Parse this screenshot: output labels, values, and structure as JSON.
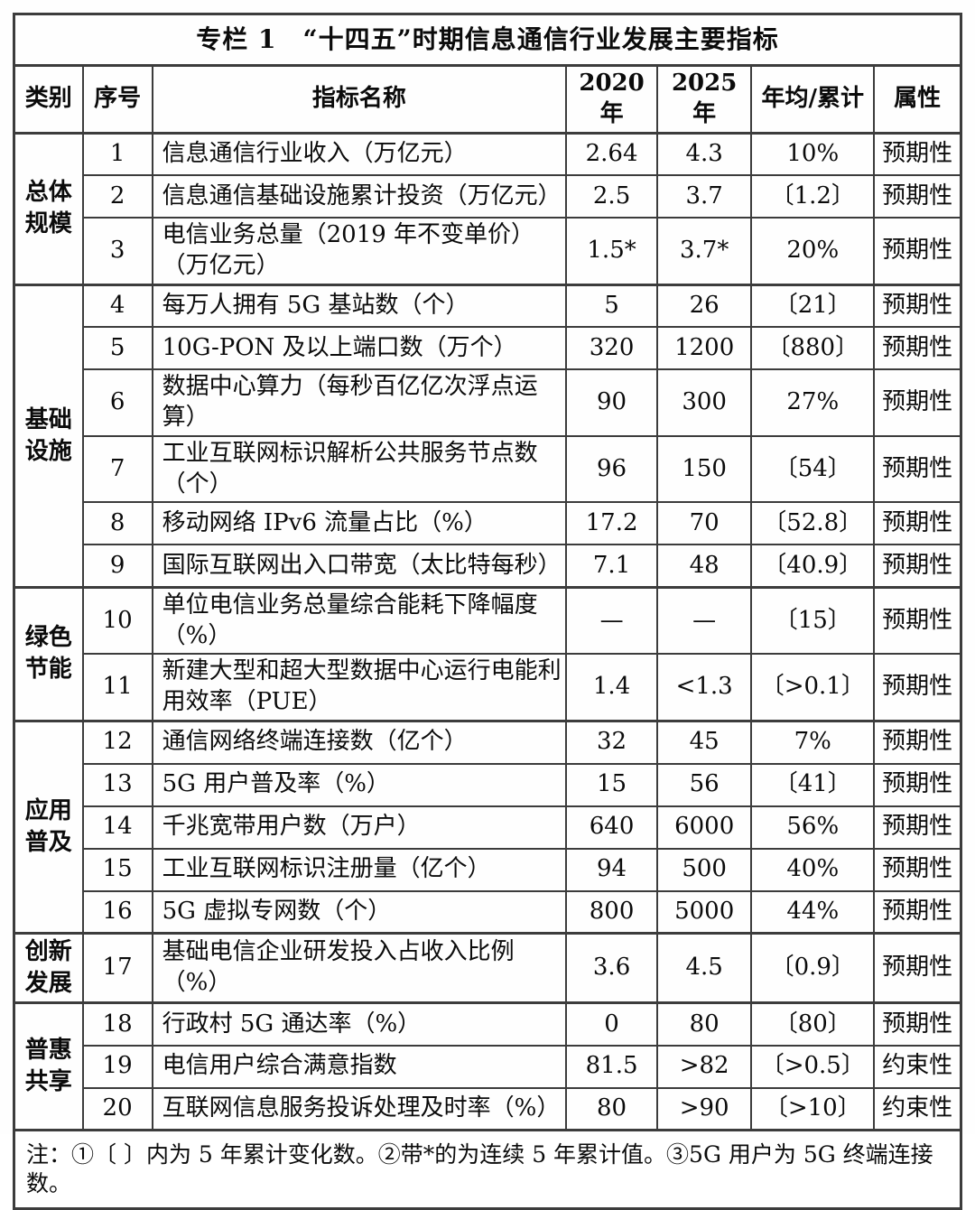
{
  "title": "专栏 1　“十四五”时期信息通信行业发展主要指标",
  "columns": [
    "类别",
    "序号",
    "指标名称",
    "2020年",
    "2025 年",
    "年均/累计",
    "属性"
  ],
  "groups": [
    {
      "category": "总体规模",
      "rows": [
        {
          "no": "1",
          "name": "信息通信行业收入（万亿元）",
          "y2020": "2.64",
          "y2025": "4.3",
          "avg": "10%",
          "attr": "预期性",
          "tall": false
        },
        {
          "no": "2",
          "name": "信息通信基础设施累计投资（万亿元）",
          "y2020": "2.5",
          "y2025": "3.7",
          "avg": "〔1.2〕",
          "attr": "预期性",
          "tall": false
        },
        {
          "no": "3",
          "name": "电信业务总量（2019 年不变单价）（万亿元）",
          "y2020": "1.5*",
          "y2025": "3.7*",
          "avg": "20%",
          "attr": "预期性",
          "tall": true
        }
      ]
    },
    {
      "category": "基础设施",
      "rows": [
        {
          "no": "4",
          "name": "每万人拥有 5G 基站数（个）",
          "y2020": "5",
          "y2025": "26",
          "avg": "〔21〕",
          "attr": "预期性",
          "tall": false
        },
        {
          "no": "5",
          "name": "10G-PON 及以上端口数（万个）",
          "y2020": "320",
          "y2025": "1200",
          "avg": "〔880〕",
          "attr": "预期性",
          "tall": false
        },
        {
          "no": "6",
          "name": "数据中心算力（每秒百亿亿次浮点运算）",
          "y2020": "90",
          "y2025": "300",
          "avg": "27%",
          "attr": "预期性",
          "tall": false
        },
        {
          "no": "7",
          "name": "工业互联网标识解析公共服务节点数（个）",
          "y2020": "96",
          "y2025": "150",
          "avg": "〔54〕",
          "attr": "预期性",
          "tall": true
        },
        {
          "no": "8",
          "name": "移动网络 IPv6 流量占比（%）",
          "y2020": "17.2",
          "y2025": "70",
          "avg": "〔52.8〕",
          "attr": "预期性",
          "tall": false
        },
        {
          "no": "9",
          "name": "国际互联网出入口带宽（太比特每秒）",
          "y2020": "7.1",
          "y2025": "48",
          "avg": "〔40.9〕",
          "attr": "预期性",
          "tall": false
        }
      ]
    },
    {
      "category": "绿色节能",
      "rows": [
        {
          "no": "10",
          "name": "单位电信业务总量综合能耗下降幅度（%）",
          "y2020": "—",
          "y2025": "—",
          "avg": "〔15〕",
          "attr": "预期性",
          "tall": true
        },
        {
          "no": "11",
          "name": "新建大型和超大型数据中心运行电能利用效率（PUE）",
          "y2020": "1.4",
          "y2025": "<1.3",
          "avg": "〔>0.1〕",
          "attr": "预期性",
          "tall": true
        }
      ]
    },
    {
      "category": "应用普及",
      "rows": [
        {
          "no": "12",
          "name": "通信网络终端连接数（亿个）",
          "y2020": "32",
          "y2025": "45",
          "avg": "7%",
          "attr": "预期性",
          "tall": false
        },
        {
          "no": "13",
          "name": "5G 用户普及率（%）",
          "y2020": "15",
          "y2025": "56",
          "avg": "〔41〕",
          "attr": "预期性",
          "tall": false
        },
        {
          "no": "14",
          "name": "千兆宽带用户数（万户）",
          "y2020": "640",
          "y2025": "6000",
          "avg": "56%",
          "attr": "预期性",
          "tall": false
        },
        {
          "no": "15",
          "name": "工业互联网标识注册量（亿个）",
          "y2020": "94",
          "y2025": "500",
          "avg": "40%",
          "attr": "预期性",
          "tall": false
        },
        {
          "no": "16",
          "name": "5G 虚拟专网数（个）",
          "y2020": "800",
          "y2025": "5000",
          "avg": "44%",
          "attr": "预期性",
          "tall": false
        }
      ]
    },
    {
      "category": "创新发展",
      "rows": [
        {
          "no": "17",
          "name": "基础电信企业研发投入占收入比例（%）",
          "y2020": "3.6",
          "y2025": "4.5",
          "avg": "〔0.9〕",
          "attr": "预期性",
          "tall": true
        }
      ]
    },
    {
      "category": "普惠共享",
      "rows": [
        {
          "no": "18",
          "name": "行政村 5G 通达率（%）",
          "y2020": "0",
          "y2025": "80",
          "avg": "〔80〕",
          "attr": "预期性",
          "tall": false
        },
        {
          "no": "19",
          "name": "电信用户综合满意指数",
          "y2020": "81.5",
          "y2025": ">82",
          "avg": "〔>0.5〕",
          "attr": "约束性",
          "tall": false
        },
        {
          "no": "20",
          "name": "互联网信息服务投诉处理及时率（%）",
          "y2020": "80",
          "y2025": ">90",
          "avg": "〔>10〕",
          "attr": "约束性",
          "tall": false
        }
      ]
    }
  ],
  "note": "注：①〔 〕内为 5 年累计变化数。②带*的为连续 5 年累计值。③5G 用户为 5G 终端连接数。"
}
